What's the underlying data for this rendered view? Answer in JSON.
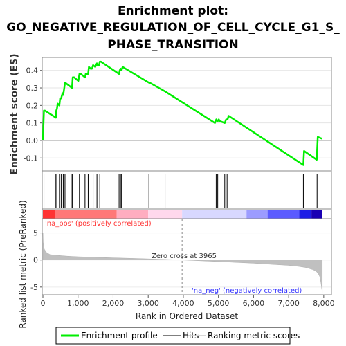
{
  "title_lines": [
    "Enrichment plot:",
    "GO_NEGATIVE_REGULATION_OF_CELL_CYCLE_G1_S_",
    "PHASE_TRANSITION"
  ],
  "chart_data": [
    {
      "type": "line",
      "name": "enrichment",
      "ylabel": "Enrichment score (ES)",
      "xlim": [
        0,
        8200
      ],
      "ylim": [
        -0.17,
        0.47
      ],
      "yticks": [
        -0.1,
        0.0,
        0.1,
        0.2,
        0.3,
        0.4
      ],
      "ytick_labels": [
        "-0.1",
        "0.0",
        "0.1",
        "0.2",
        "0.3",
        "0.4"
      ],
      "grid": true,
      "color": "#00ee00",
      "series": [
        {
          "x": [
            0,
            30,
            60,
            370,
            380,
            400,
            420,
            470,
            490,
            520,
            560,
            580,
            610,
            630,
            830,
            850,
            890,
            1010,
            1040,
            1080,
            1200,
            1220,
            1290,
            1310,
            1360,
            1400,
            1430,
            1490,
            1540,
            1560,
            1600,
            1620,
            1650,
            2170,
            2190,
            2210,
            2240,
            2270,
            3020,
            3040,
            3480,
            4900,
            4940,
            4980,
            5010,
            5040,
            5180,
            5220,
            5260,
            5290,
            7420,
            7440,
            7800,
            7830,
            7950
          ],
          "y": [
            0.0,
            0.17,
            0.17,
            0.13,
            0.17,
            0.18,
            0.21,
            0.2,
            0.24,
            0.24,
            0.27,
            0.26,
            0.3,
            0.33,
            0.3,
            0.36,
            0.36,
            0.34,
            0.38,
            0.38,
            0.36,
            0.38,
            0.38,
            0.42,
            0.41,
            0.41,
            0.43,
            0.42,
            0.44,
            0.43,
            0.43,
            0.45,
            0.45,
            0.38,
            0.4,
            0.41,
            0.4,
            0.42,
            0.33,
            0.33,
            0.28,
            0.1,
            0.12,
            0.11,
            0.12,
            0.11,
            0.1,
            0.12,
            0.12,
            0.14,
            -0.14,
            -0.06,
            -0.11,
            0.02,
            0.01
          ]
        }
      ]
    },
    {
      "type": "scatter",
      "name": "hits",
      "xlim": [
        0,
        8200
      ],
      "hits": [
        30,
        370,
        400,
        470,
        520,
        580,
        630,
        830,
        850,
        1040,
        1200,
        1290,
        1310,
        1430,
        1540,
        1620,
        2170,
        2210,
        2240,
        3020,
        3480,
        4900,
        4940,
        4980,
        5180,
        5220,
        5260,
        7420,
        7810
      ]
    },
    {
      "type": "area",
      "name": "ranked-metric",
      "ylabel": "Ranked list metric (PreRanked)",
      "xlabel": "Rank in Ordered Dataset",
      "xlim": [
        0,
        8200
      ],
      "ylim": [
        -6.3,
        7.5
      ],
      "yticks": [
        -5,
        0,
        5
      ],
      "ytick_labels": [
        "-5",
        "0",
        "5"
      ],
      "xticks": [
        0,
        1000,
        2000,
        3000,
        4000,
        5000,
        6000,
        7000,
        8000
      ],
      "xtick_labels": [
        "0",
        "1,000",
        "2,000",
        "3,000",
        "4,000",
        "5,000",
        "6,000",
        "7,000",
        "8,000"
      ],
      "x": [
        0,
        10,
        40,
        100,
        200,
        400,
        700,
        1000,
        1500,
        2000,
        2500,
        3000,
        3500,
        3965,
        4500,
        5000,
        5500,
        6000,
        6500,
        7000,
        7300,
        7500,
        7700,
        7800,
        7850,
        7880,
        7900,
        7920,
        7940,
        7960
      ],
      "y": [
        5.0,
        3.2,
        2.0,
        1.4,
        1.0,
        0.85,
        0.7,
        0.6,
        0.5,
        0.4,
        0.3,
        0.2,
        0.1,
        0.0,
        -0.15,
        -0.3,
        -0.45,
        -0.6,
        -0.8,
        -1.0,
        -1.2,
        -1.4,
        -1.8,
        -2.2,
        -2.6,
        -3.0,
        -3.5,
        -4.2,
        -5.2,
        -6.0
      ],
      "zero_cross": 3965,
      "annotations": {
        "zero_cross": "Zero cross at 3965",
        "pos": "'na_pos' (positively correlated)",
        "neg": "'na_neg' (negatively correlated)"
      }
    }
  ],
  "colorbar": {
    "segments": [
      {
        "to": 350,
        "color": "#ff3333"
      },
      {
        "to": 2100,
        "color": "#ff7878"
      },
      {
        "to": 3000,
        "color": "#ffadc0"
      },
      {
        "to": 3965,
        "color": "#ffd8ec"
      },
      {
        "to": 5800,
        "color": "#d8d8ff"
      },
      {
        "to": 6400,
        "color": "#9c9cff"
      },
      {
        "to": 7300,
        "color": "#5b5bff"
      },
      {
        "to": 7650,
        "color": "#1e1ee6"
      },
      {
        "to": 7960,
        "color": "#1a00b4"
      }
    ]
  },
  "legend": [
    {
      "label": "Enrichment profile",
      "color": "#00ee00",
      "kind": "line-thick"
    },
    {
      "label": "Hits",
      "color": "#555555",
      "kind": "line"
    },
    {
      "label": "Ranking metric scores",
      "color": "#cccccc",
      "kind": "line"
    }
  ]
}
